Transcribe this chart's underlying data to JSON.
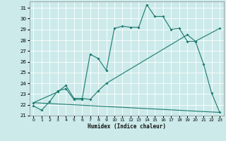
{
  "bg_color": "#cceaea",
  "grid_color": "#ffffff",
  "line_color": "#1a7a6e",
  "markersize": 2.0,
  "linewidth": 0.8,
  "xlabel": "Humidex (Indice chaleur)",
  "xlim": [
    -0.5,
    23.5
  ],
  "ylim": [
    21,
    31.6
  ],
  "yticks": [
    21,
    22,
    23,
    24,
    25,
    26,
    27,
    28,
    29,
    30,
    31
  ],
  "xticks": [
    0,
    1,
    2,
    3,
    4,
    5,
    6,
    7,
    8,
    9,
    10,
    11,
    12,
    13,
    14,
    15,
    16,
    17,
    18,
    19,
    20,
    21,
    22,
    23
  ],
  "series1_x": [
    0,
    1,
    2,
    3,
    4,
    5,
    6,
    7,
    8,
    9,
    10,
    11,
    12,
    13,
    14,
    15,
    16,
    17,
    18,
    19,
    20,
    21,
    22,
    23
  ],
  "series1_y": [
    21.9,
    21.5,
    22.3,
    23.3,
    23.5,
    22.5,
    22.5,
    26.7,
    26.3,
    25.2,
    29.1,
    29.3,
    29.2,
    29.2,
    31.3,
    30.2,
    30.2,
    29.0,
    29.1,
    27.9,
    27.9,
    25.8,
    23.1,
    21.3
  ],
  "series2_x": [
    0,
    3,
    4,
    5,
    6,
    7,
    8,
    9,
    19,
    20,
    23
  ],
  "series2_y": [
    22.2,
    23.2,
    23.8,
    22.6,
    22.6,
    22.5,
    23.3,
    24.0,
    28.5,
    27.9,
    29.1
  ],
  "series3_x": [
    0,
    23
  ],
  "series3_y": [
    22.2,
    21.3
  ]
}
